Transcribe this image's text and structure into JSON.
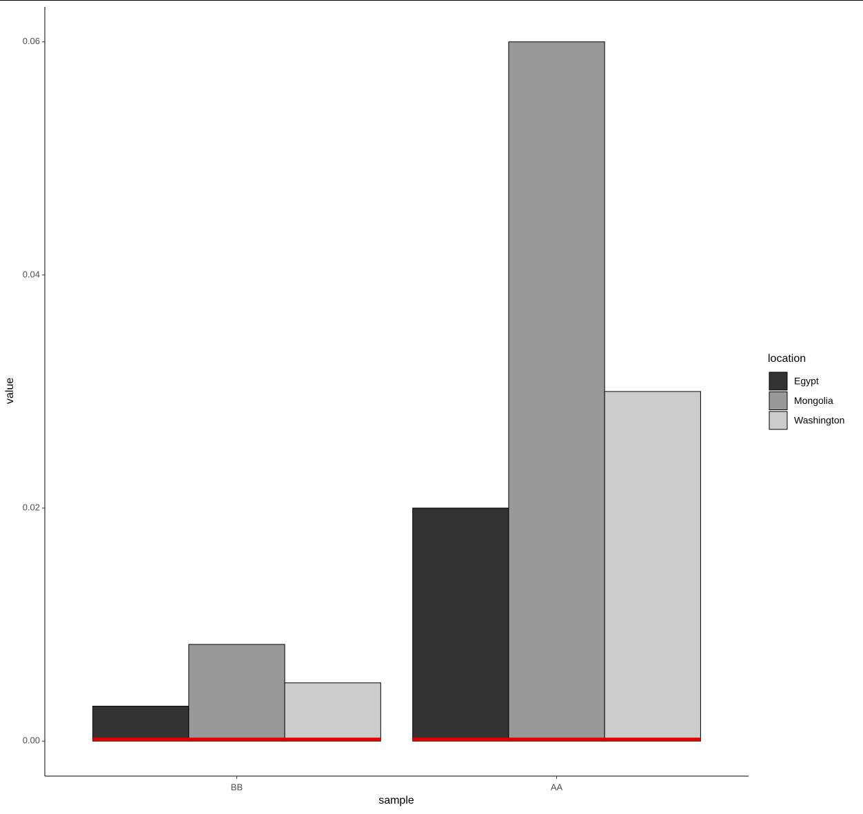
{
  "chart_data": {
    "type": "bar",
    "x_label": "sample",
    "y_label": "value",
    "categories": [
      "BB",
      "AA"
    ],
    "series": [
      {
        "name": "Egypt",
        "color": "#333333",
        "values": [
          0.003,
          0.02
        ]
      },
      {
        "name": "Mongolia",
        "color": "#999999",
        "values": [
          0.0083,
          0.06
        ]
      },
      {
        "name": "Washington",
        "color": "#cccccc",
        "values": [
          0.005,
          0.03
        ]
      }
    ],
    "ylim": [
      -0.003,
      0.063
    ],
    "yticks": [
      {
        "value": 0,
        "label": "0.00"
      },
      0.02,
      0.04,
      0.06
    ],
    "legend_title": "location",
    "legend_position": "right",
    "reference_line": {
      "value": 0,
      "color": "#e00000"
    },
    "grid": false
  }
}
